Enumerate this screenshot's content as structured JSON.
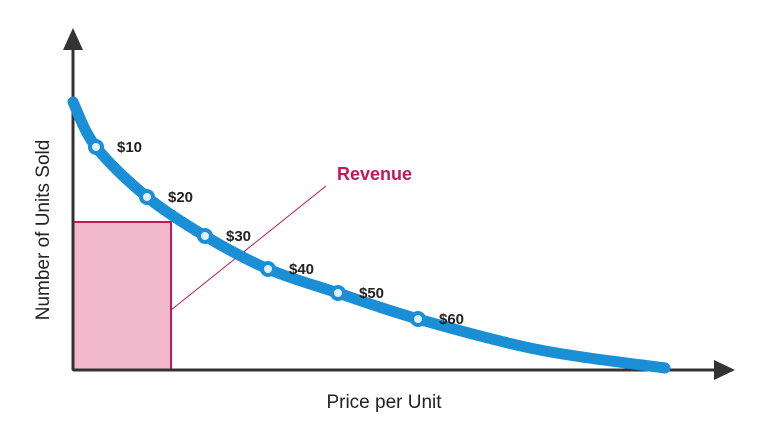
{
  "diagram": {
    "x_axis_label": "Price per Unit",
    "y_axis_label": "Number of Units Sold",
    "annotation": "Revenue",
    "points": [
      {
        "label": "$10"
      },
      {
        "label": "$20"
      },
      {
        "label": "$30"
      },
      {
        "label": "$40"
      },
      {
        "label": "$50"
      },
      {
        "label": "$60"
      }
    ]
  }
}
